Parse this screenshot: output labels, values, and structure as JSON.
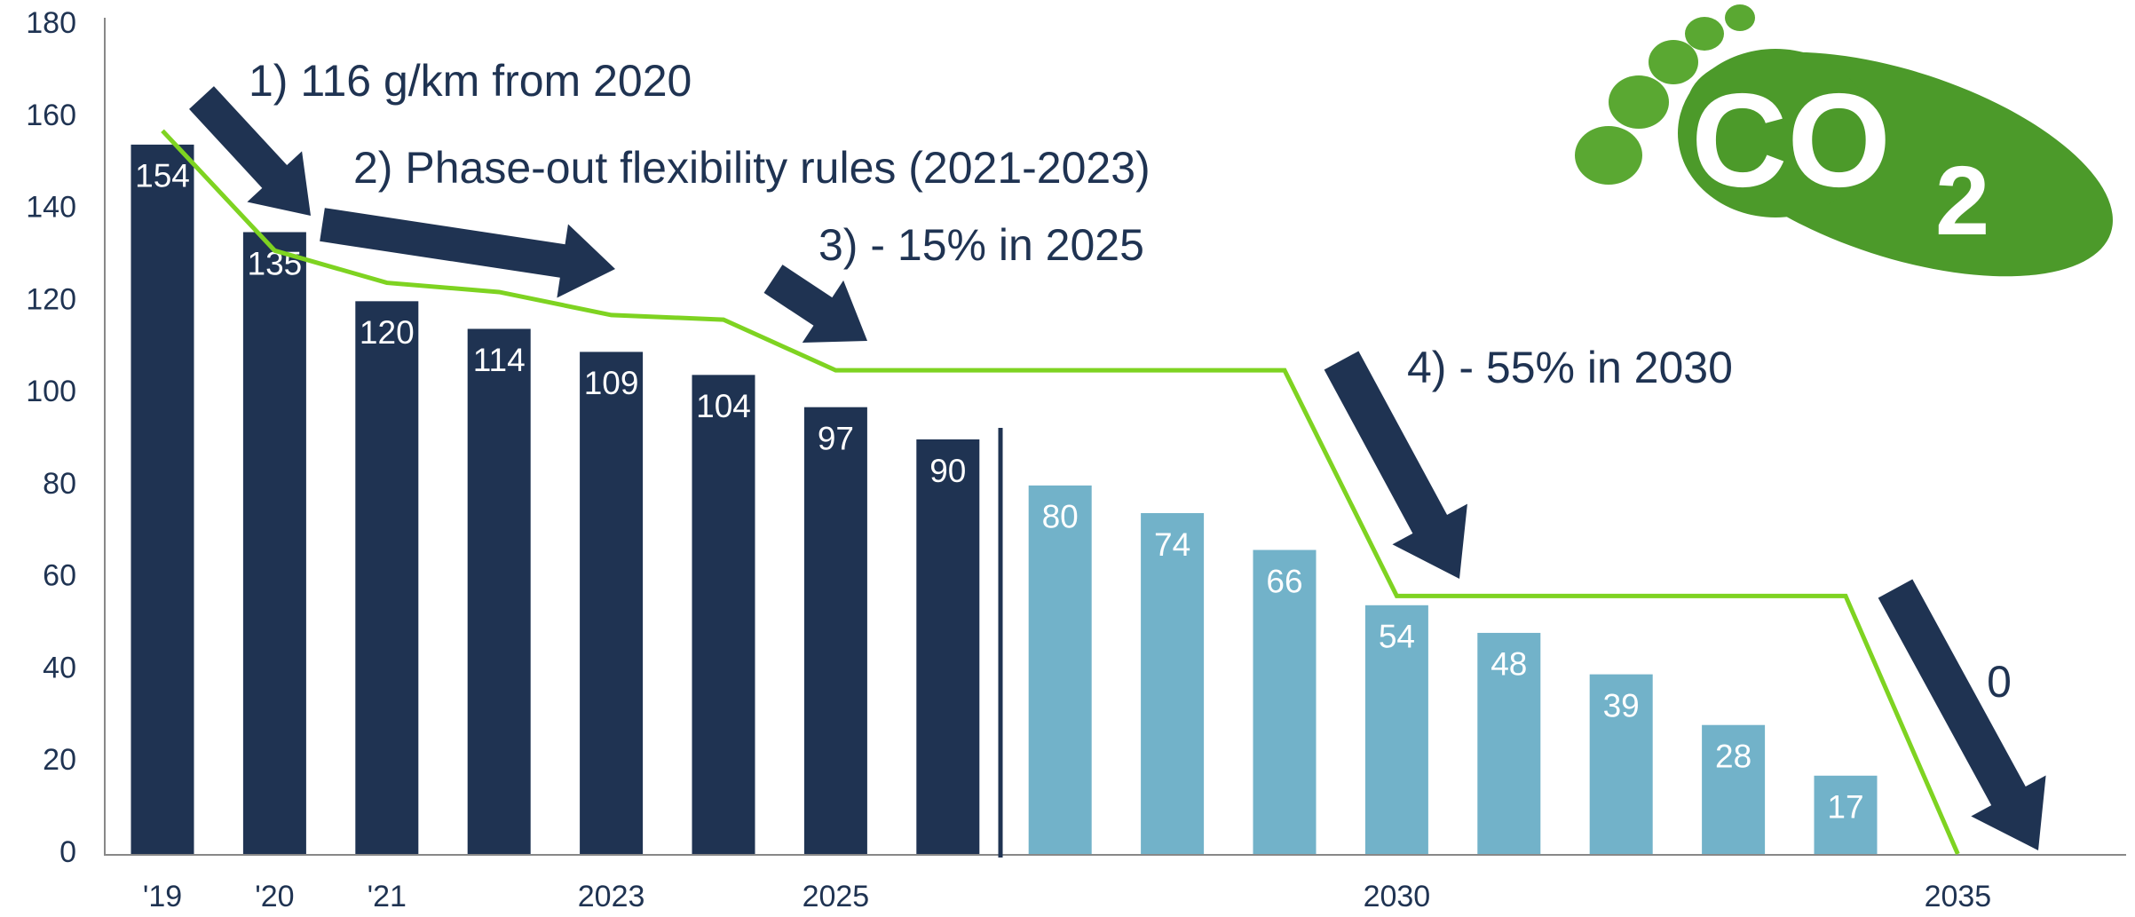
{
  "chart_data": {
    "type": "bar",
    "categories": [
      "'19",
      "'20",
      "'21",
      null,
      "2023",
      null,
      "2025",
      null,
      null,
      null,
      null,
      "2030",
      null,
      null,
      null,
      null,
      "2035"
    ],
    "values": [
      154,
      135,
      120,
      114,
      109,
      104,
      97,
      90,
      80,
      74,
      66,
      54,
      48,
      39,
      28,
      17,
      null
    ],
    "colors": [
      "#1f3352",
      "#1f3352",
      "#1f3352",
      "#1f3352",
      "#1f3352",
      "#1f3352",
      "#1f3352",
      "#1f3352",
      "#72b2c9",
      "#72b2c9",
      "#72b2c9",
      "#72b2c9",
      "#72b2c9",
      "#72b2c9",
      "#72b2c9",
      "#72b2c9",
      "#72b2c9"
    ],
    "line": {
      "color": "#7ed321",
      "values": [
        157,
        131,
        124,
        122,
        117,
        116,
        105,
        105,
        105,
        105,
        105,
        56,
        56,
        56,
        56,
        56,
        0
      ]
    },
    "ylim": [
      0,
      180
    ],
    "yticks": [
      0,
      20,
      40,
      60,
      80,
      100,
      120,
      140,
      160,
      180
    ],
    "grid": false,
    "annotations": [
      "1) 116 g/km from 2020",
      "2) Phase-out flexibility rules (2021-2023)",
      "3) - 15% in 2025",
      "4) - 55% in 2030",
      "0"
    ]
  },
  "logo": {
    "text": "CO",
    "subscript": "2"
  }
}
